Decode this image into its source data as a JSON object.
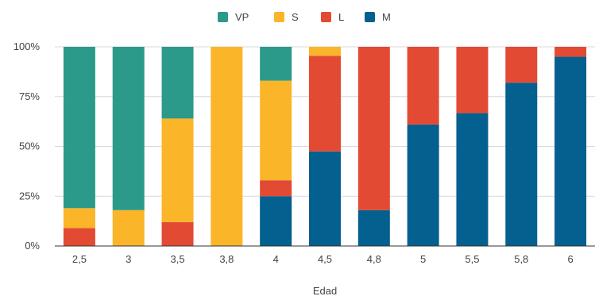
{
  "chart_data": {
    "type": "bar",
    "stacked": "percent",
    "title": "",
    "xlabel": "Edad",
    "ylabel": "",
    "ylim": [
      0,
      100
    ],
    "yticks": [
      "0%",
      "25%",
      "50%",
      "75%",
      "100%"
    ],
    "grid": true,
    "legend_position": "top-center",
    "categories": [
      "2,5",
      "3",
      "3,5",
      "3,8",
      "4",
      "4,5",
      "4,8",
      "5",
      "5,5",
      "5,8",
      "6"
    ],
    "series": [
      {
        "name": "M",
        "color": "#03608f",
        "values": [
          0,
          0,
          0,
          0,
          25,
          47.5,
          18,
          61,
          66.7,
          82,
          95
        ]
      },
      {
        "name": "L",
        "color": "#e34a33",
        "values": [
          9,
          0,
          12,
          0,
          8,
          48,
          82,
          39,
          33.3,
          18,
          5
        ]
      },
      {
        "name": "S",
        "color": "#fbb529",
        "values": [
          10,
          18,
          52,
          100,
          50,
          4.5,
          0,
          0,
          0,
          0,
          0
        ]
      },
      {
        "name": "VP",
        "color": "#2b9a8a",
        "values": [
          81,
          82,
          36,
          0,
          17,
          0,
          0,
          0,
          0,
          0,
          0
        ]
      }
    ],
    "legend_order": [
      "VP",
      "S",
      "L",
      "M"
    ]
  }
}
